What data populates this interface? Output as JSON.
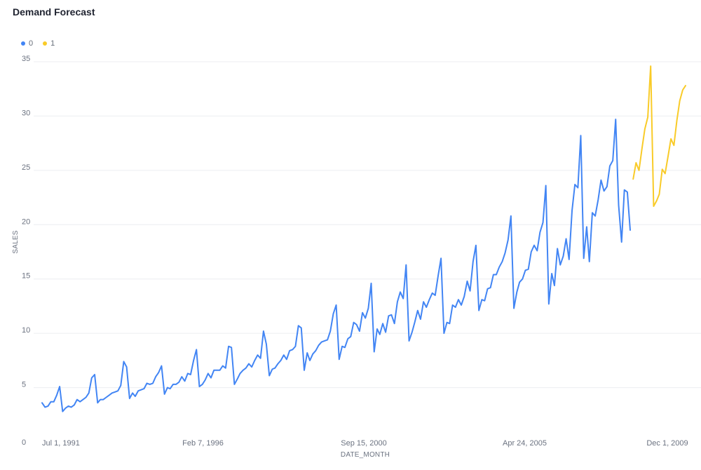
{
  "chart_data": {
    "type": "line",
    "title": "Demand Forecast",
    "xlabel": "DATE_MONTH",
    "ylabel": "SALES",
    "ylim": [
      0,
      35
    ],
    "yticks": [
      0,
      5,
      10,
      15,
      20,
      25,
      30,
      35
    ],
    "xlim": [
      "1991-07-01",
      "2010-06-01"
    ],
    "xticks": [
      {
        "date": "1991-07-01",
        "label": "Jul 1, 1991"
      },
      {
        "date": "1996-02-07",
        "label": "Feb 7, 1996"
      },
      {
        "date": "2000-09-15",
        "label": "Sep 15, 2000"
      },
      {
        "date": "2005-04-24",
        "label": "Apr 24, 2005"
      },
      {
        "date": "2009-12-01",
        "label": "Dec 1, 2009"
      }
    ],
    "grid": "horizontal",
    "legend_position": "top-left",
    "series": [
      {
        "name": "0",
        "color": "#4285f4",
        "points": [
          [
            "1991-07-01",
            3.6
          ],
          [
            "1991-08-01",
            3.2
          ],
          [
            "1991-09-01",
            3.3
          ],
          [
            "1991-10-01",
            3.7
          ],
          [
            "1991-11-01",
            3.7
          ],
          [
            "1991-12-01",
            4.3
          ],
          [
            "1992-01-01",
            5.1
          ],
          [
            "1992-02-01",
            2.8
          ],
          [
            "1992-03-01",
            3.1
          ],
          [
            "1992-04-01",
            3.3
          ],
          [
            "1992-05-01",
            3.2
          ],
          [
            "1992-06-01",
            3.4
          ],
          [
            "1992-07-01",
            3.9
          ],
          [
            "1992-08-01",
            3.7
          ],
          [
            "1992-09-01",
            3.9
          ],
          [
            "1992-10-01",
            4.1
          ],
          [
            "1992-11-01",
            4.5
          ],
          [
            "1992-12-01",
            5.9
          ],
          [
            "1993-01-01",
            6.2
          ],
          [
            "1993-02-01",
            3.6
          ],
          [
            "1993-03-01",
            3.9
          ],
          [
            "1993-04-01",
            3.9
          ],
          [
            "1993-05-01",
            4.1
          ],
          [
            "1993-06-01",
            4.3
          ],
          [
            "1993-07-01",
            4.5
          ],
          [
            "1993-08-01",
            4.6
          ],
          [
            "1993-09-01",
            4.7
          ],
          [
            "1993-10-01",
            5.2
          ],
          [
            "1993-11-01",
            7.4
          ],
          [
            "1993-12-01",
            6.9
          ],
          [
            "1994-01-01",
            4.0
          ],
          [
            "1994-02-01",
            4.5
          ],
          [
            "1994-03-01",
            4.2
          ],
          [
            "1994-04-01",
            4.7
          ],
          [
            "1994-05-01",
            4.8
          ],
          [
            "1994-06-01",
            4.9
          ],
          [
            "1994-07-01",
            5.4
          ],
          [
            "1994-08-01",
            5.3
          ],
          [
            "1994-09-01",
            5.4
          ],
          [
            "1994-10-01",
            6.0
          ],
          [
            "1994-11-01",
            6.4
          ],
          [
            "1994-12-01",
            7.0
          ],
          [
            "1995-01-01",
            4.4
          ],
          [
            "1995-02-01",
            5.0
          ],
          [
            "1995-03-01",
            4.9
          ],
          [
            "1995-04-01",
            5.3
          ],
          [
            "1995-05-01",
            5.3
          ],
          [
            "1995-06-01",
            5.5
          ],
          [
            "1995-07-01",
            6.0
          ],
          [
            "1995-08-01",
            5.6
          ],
          [
            "1995-09-01",
            6.3
          ],
          [
            "1995-10-01",
            6.2
          ],
          [
            "1995-11-01",
            7.5
          ],
          [
            "1995-12-01",
            8.5
          ],
          [
            "1996-01-01",
            5.1
          ],
          [
            "1996-02-01",
            5.3
          ],
          [
            "1996-03-01",
            5.7
          ],
          [
            "1996-04-01",
            6.3
          ],
          [
            "1996-05-01",
            5.9
          ],
          [
            "1996-06-01",
            6.6
          ],
          [
            "1996-07-01",
            6.6
          ],
          [
            "1996-08-01",
            6.6
          ],
          [
            "1996-09-01",
            7.0
          ],
          [
            "1996-10-01",
            6.8
          ],
          [
            "1996-11-01",
            8.8
          ],
          [
            "1996-12-01",
            8.7
          ],
          [
            "1997-01-01",
            5.3
          ],
          [
            "1997-02-01",
            5.8
          ],
          [
            "1997-03-01",
            6.3
          ],
          [
            "1997-04-01",
            6.6
          ],
          [
            "1997-05-01",
            6.8
          ],
          [
            "1997-06-01",
            7.2
          ],
          [
            "1997-07-01",
            6.9
          ],
          [
            "1997-08-01",
            7.5
          ],
          [
            "1997-09-01",
            8.0
          ],
          [
            "1997-10-01",
            7.7
          ],
          [
            "1997-11-01",
            10.2
          ],
          [
            "1997-12-01",
            9.0
          ],
          [
            "1998-01-01",
            6.1
          ],
          [
            "1998-02-01",
            6.7
          ],
          [
            "1998-03-01",
            6.8
          ],
          [
            "1998-04-01",
            7.2
          ],
          [
            "1998-05-01",
            7.5
          ],
          [
            "1998-06-01",
            8.0
          ],
          [
            "1998-07-01",
            7.6
          ],
          [
            "1998-08-01",
            8.4
          ],
          [
            "1998-09-01",
            8.5
          ],
          [
            "1998-10-01",
            8.8
          ],
          [
            "1998-11-01",
            10.7
          ],
          [
            "1998-12-01",
            10.5
          ],
          [
            "1999-01-01",
            6.6
          ],
          [
            "1999-02-01",
            8.2
          ],
          [
            "1999-03-01",
            7.5
          ],
          [
            "1999-04-01",
            8.1
          ],
          [
            "1999-05-01",
            8.4
          ],
          [
            "1999-06-01",
            8.9
          ],
          [
            "1999-07-01",
            9.2
          ],
          [
            "1999-08-01",
            9.3
          ],
          [
            "1999-09-01",
            9.4
          ],
          [
            "1999-10-01",
            10.2
          ],
          [
            "1999-11-01",
            11.8
          ],
          [
            "1999-12-01",
            12.6
          ],
          [
            "2000-01-01",
            7.6
          ],
          [
            "2000-02-01",
            8.8
          ],
          [
            "2000-03-01",
            8.7
          ],
          [
            "2000-04-01",
            9.5
          ],
          [
            "2000-05-01",
            9.7
          ],
          [
            "2000-06-01",
            11.0
          ],
          [
            "2000-07-01",
            10.8
          ],
          [
            "2000-08-01",
            10.2
          ],
          [
            "2000-09-01",
            11.9
          ],
          [
            "2000-10-01",
            11.4
          ],
          [
            "2000-11-01",
            12.3
          ],
          [
            "2000-12-01",
            14.6
          ],
          [
            "2001-01-01",
            8.3
          ],
          [
            "2001-02-01",
            10.4
          ],
          [
            "2001-03-01",
            9.9
          ],
          [
            "2001-04-01",
            10.9
          ],
          [
            "2001-05-01",
            10.1
          ],
          [
            "2001-06-01",
            11.6
          ],
          [
            "2001-07-01",
            11.7
          ],
          [
            "2001-08-01",
            10.9
          ],
          [
            "2001-09-01",
            12.9
          ],
          [
            "2001-10-01",
            13.8
          ],
          [
            "2001-11-01",
            13.2
          ],
          [
            "2001-12-01",
            16.3
          ],
          [
            "2002-01-01",
            9.3
          ],
          [
            "2002-02-01",
            10.1
          ],
          [
            "2002-03-01",
            11.0
          ],
          [
            "2002-04-01",
            12.1
          ],
          [
            "2002-05-01",
            11.3
          ],
          [
            "2002-06-01",
            12.9
          ],
          [
            "2002-07-01",
            12.4
          ],
          [
            "2002-08-01",
            13.1
          ],
          [
            "2002-09-01",
            13.7
          ],
          [
            "2002-10-01",
            13.5
          ],
          [
            "2002-11-01",
            15.3
          ],
          [
            "2002-12-01",
            16.9
          ],
          [
            "2003-01-01",
            10.0
          ],
          [
            "2003-02-01",
            11.0
          ],
          [
            "2003-03-01",
            10.9
          ],
          [
            "2003-04-01",
            12.6
          ],
          [
            "2003-05-01",
            12.4
          ],
          [
            "2003-06-01",
            13.1
          ],
          [
            "2003-07-01",
            12.6
          ],
          [
            "2003-08-01",
            13.4
          ],
          [
            "2003-09-01",
            14.8
          ],
          [
            "2003-10-01",
            13.9
          ],
          [
            "2003-11-01",
            16.6
          ],
          [
            "2003-12-01",
            18.1
          ],
          [
            "2004-01-01",
            12.1
          ],
          [
            "2004-02-01",
            13.1
          ],
          [
            "2004-03-01",
            13.0
          ],
          [
            "2004-04-01",
            14.1
          ],
          [
            "2004-05-01",
            14.2
          ],
          [
            "2004-06-01",
            15.4
          ],
          [
            "2004-07-01",
            15.4
          ],
          [
            "2004-08-01",
            16.1
          ],
          [
            "2004-09-01",
            16.6
          ],
          [
            "2004-10-01",
            17.4
          ],
          [
            "2004-11-01",
            18.6
          ],
          [
            "2004-12-01",
            20.8
          ],
          [
            "2005-01-01",
            12.3
          ],
          [
            "2005-02-01",
            13.8
          ],
          [
            "2005-03-01",
            14.7
          ],
          [
            "2005-04-01",
            15.0
          ],
          [
            "2005-05-01",
            15.8
          ],
          [
            "2005-06-01",
            15.9
          ],
          [
            "2005-07-01",
            17.5
          ],
          [
            "2005-08-01",
            18.1
          ],
          [
            "2005-09-01",
            17.6
          ],
          [
            "2005-10-01",
            19.3
          ],
          [
            "2005-11-01",
            20.2
          ],
          [
            "2005-12-01",
            23.6
          ],
          [
            "2006-01-01",
            12.7
          ],
          [
            "2006-02-01",
            15.5
          ],
          [
            "2006-03-01",
            14.4
          ],
          [
            "2006-04-01",
            17.8
          ],
          [
            "2006-05-01",
            16.3
          ],
          [
            "2006-06-01",
            17.1
          ],
          [
            "2006-07-01",
            18.7
          ],
          [
            "2006-08-01",
            16.8
          ],
          [
            "2006-09-01",
            21.3
          ],
          [
            "2006-10-01",
            23.7
          ],
          [
            "2006-11-01",
            23.4
          ],
          [
            "2006-12-01",
            28.2
          ],
          [
            "2007-01-01",
            16.9
          ],
          [
            "2007-02-01",
            19.8
          ],
          [
            "2007-03-01",
            16.6
          ],
          [
            "2007-04-01",
            21.1
          ],
          [
            "2007-05-01",
            20.8
          ],
          [
            "2007-06-01",
            22.3
          ],
          [
            "2007-07-01",
            24.1
          ],
          [
            "2007-08-01",
            23.1
          ],
          [
            "2007-09-01",
            23.5
          ],
          [
            "2007-10-01",
            25.4
          ],
          [
            "2007-11-01",
            25.9
          ],
          [
            "2007-12-01",
            29.7
          ],
          [
            "2008-01-01",
            21.8
          ],
          [
            "2008-02-01",
            18.4
          ],
          [
            "2008-03-01",
            23.2
          ],
          [
            "2008-04-01",
            23.0
          ],
          [
            "2008-05-01",
            19.5
          ]
        ]
      },
      {
        "name": "1",
        "color": "#f9cb28",
        "points": [
          [
            "2008-06-01",
            24.2
          ],
          [
            "2008-07-01",
            25.7
          ],
          [
            "2008-08-01",
            25.0
          ],
          [
            "2008-09-01",
            27.0
          ],
          [
            "2008-10-01",
            28.8
          ],
          [
            "2008-11-01",
            29.9
          ],
          [
            "2008-12-01",
            34.6
          ],
          [
            "2009-01-01",
            21.7
          ],
          [
            "2009-02-01",
            22.2
          ],
          [
            "2009-03-01",
            22.8
          ],
          [
            "2009-04-01",
            25.1
          ],
          [
            "2009-05-01",
            24.7
          ],
          [
            "2009-06-01",
            26.3
          ],
          [
            "2009-07-01",
            27.9
          ],
          [
            "2009-08-01",
            27.3
          ],
          [
            "2009-09-01",
            29.6
          ],
          [
            "2009-10-01",
            31.4
          ],
          [
            "2009-11-01",
            32.4
          ],
          [
            "2009-12-01",
            32.8
          ]
        ]
      }
    ]
  }
}
